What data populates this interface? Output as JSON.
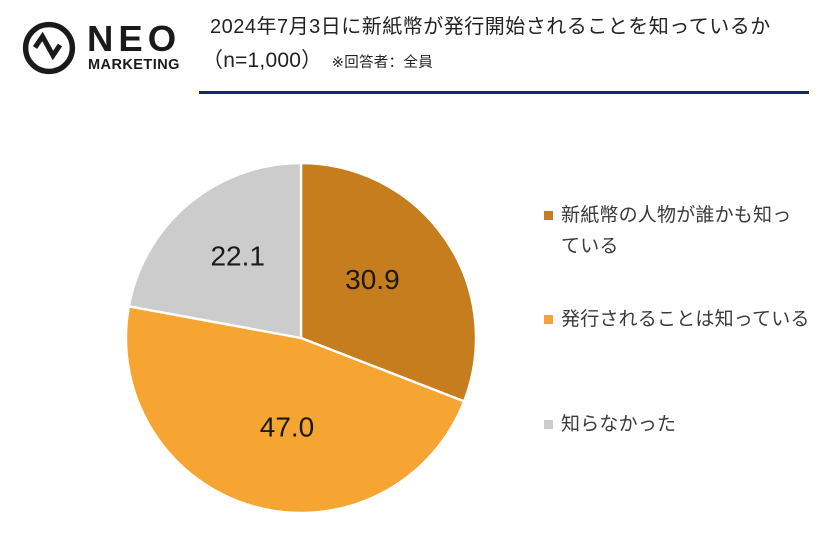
{
  "logo": {
    "name": "NEO",
    "subname": "MARKETING",
    "color": "#1a1a1a",
    "mark": "pulse-in-circle"
  },
  "title": {
    "line1": "2024年7月3日に新紙幣が発行開始されることを知っているか",
    "line2_main": "（n=1,000）",
    "line2_note": "※回答者：全員",
    "rule_color": "#1b2471"
  },
  "chart_data": {
    "type": "pie",
    "title": "2024年7月3日に新紙幣が発行開始されることを知っているか（n=1,000） ※回答者：全員",
    "start_angle_deg": 0,
    "direction": "clockwise",
    "data_labels": "inside",
    "label_decimals": 1,
    "legend_position": "right",
    "separator_color": "#ffffff",
    "slices": [
      {
        "label": "新紙幣の人物が誰かも知っている",
        "value": 30.9,
        "color": "#c67d1e",
        "label_angle_deg": 50.3,
        "label_radius_frac": 0.53
      },
      {
        "label": "発行されることは知っている",
        "value": 47.0,
        "color": "#f6a432",
        "label_angle_deg": 189.0,
        "label_radius_frac": 0.512
      },
      {
        "label": "知らなかった",
        "value": 22.1,
        "color": "#cccccc",
        "label_angle_deg": 322.5,
        "label_radius_frac": 0.594
      }
    ]
  }
}
